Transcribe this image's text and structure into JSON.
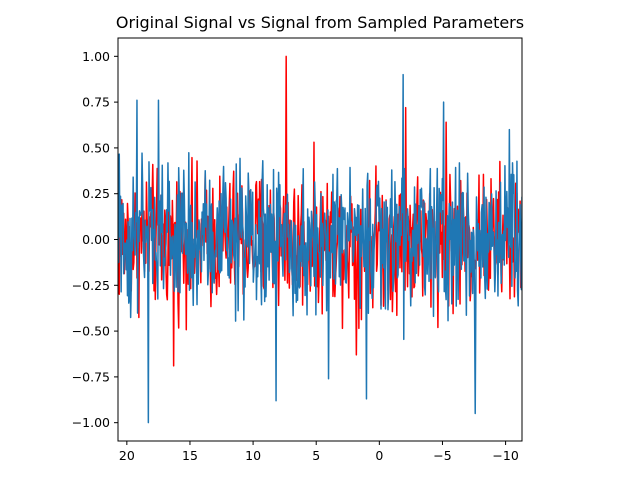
{
  "chart_data": {
    "type": "line",
    "title": "Original Signal vs Signal from Sampled Parameters",
    "xlabel": "",
    "ylabel": "",
    "xlim": [
      20.7,
      -11.3
    ],
    "ylim": [
      -1.1,
      1.1
    ],
    "x_ticks": [
      20,
      15,
      10,
      5,
      0,
      -5,
      -10
    ],
    "x_tick_labels": [
      "20",
      "15",
      "10",
      "5",
      "0",
      "−5",
      "−10"
    ],
    "y_ticks": [
      1.0,
      0.75,
      0.5,
      0.25,
      0.0,
      -0.25,
      -0.5,
      -0.75,
      -1.0
    ],
    "y_tick_labels": [
      "1.00",
      "0.75",
      "0.50",
      "0.25",
      "0.00",
      "−0.25",
      "−0.50",
      "−0.75",
      "−1.00"
    ],
    "grid": false,
    "legend": "none",
    "series": [
      {
        "color": "#ff0000",
        "signal": "dense noise",
        "x_start": 20.7,
        "x_end": -11.3,
        "num_points": 640,
        "typical_amplitude": 0.42,
        "peaks": [
          {
            "x": 7.4,
            "y": 1.0
          },
          {
            "x": 16.3,
            "y": -0.69
          },
          {
            "x": 1.8,
            "y": -0.63
          },
          {
            "x": -2.1,
            "y": 0.72
          },
          {
            "x": -5.3,
            "y": 0.64
          }
        ]
      },
      {
        "color": "#1f77b4",
        "signal": "dense noise",
        "x_start": 20.7,
        "x_end": -11.3,
        "num_points": 640,
        "typical_amplitude": 0.48,
        "peaks": [
          {
            "x": 18.3,
            "y": -1.0
          },
          {
            "x": 17.5,
            "y": 0.76
          },
          {
            "x": 19.2,
            "y": 0.76
          },
          {
            "x": 8.2,
            "y": -0.88
          },
          {
            "x": 1.0,
            "y": -0.87
          },
          {
            "x": -1.9,
            "y": 0.9
          },
          {
            "x": -7.6,
            "y": -0.95
          },
          {
            "x": -5.1,
            "y": 0.75
          },
          {
            "x": -10.3,
            "y": 0.6
          },
          {
            "x": 4.0,
            "y": -0.76
          }
        ]
      }
    ]
  }
}
